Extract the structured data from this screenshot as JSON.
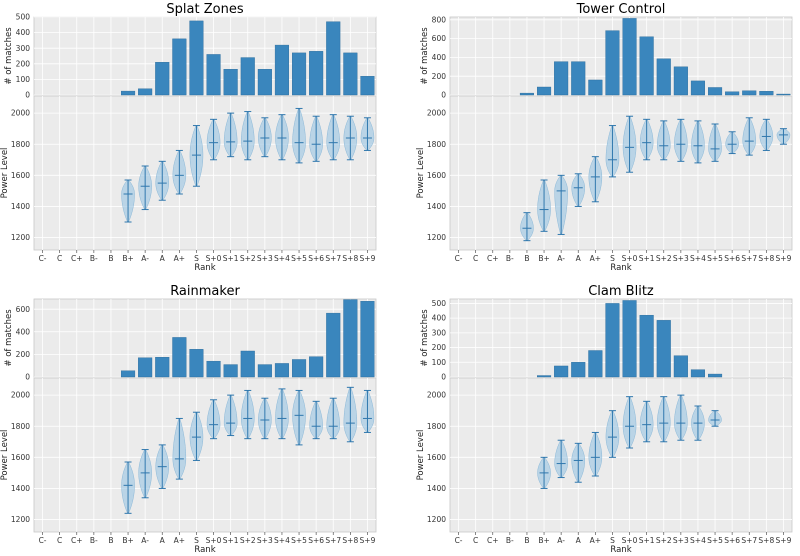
{
  "chart_data": [
    {
      "type": "bar+violin",
      "title": "Splat Zones",
      "categories": [
        "C-",
        "C",
        "C+",
        "B-",
        "B",
        "B+",
        "A-",
        "A",
        "A+",
        "S",
        "S+0",
        "S+1",
        "S+2",
        "S+3",
        "S+4",
        "S+5",
        "S+6",
        "S+7",
        "S+8",
        "S+9"
      ],
      "matches": {
        "ylabel": "# of matches",
        "ylim": [
          0,
          500
        ],
        "yticks": [
          0,
          100,
          200,
          300,
          400,
          500
        ],
        "values": [
          0,
          0,
          0,
          0,
          0,
          25,
          40,
          210,
          360,
          475,
          260,
          165,
          240,
          165,
          320,
          270,
          280,
          470,
          270,
          120
        ]
      },
      "power": {
        "ylabel": "Power Level",
        "xlabel": "Rank",
        "ylim": [
          1120,
          2110
        ],
        "yticks": [
          1200,
          1400,
          1600,
          1800,
          2000
        ],
        "violins": [
          null,
          null,
          null,
          null,
          null,
          {
            "min": 1300,
            "max": 1570,
            "median": 1480
          },
          {
            "min": 1380,
            "max": 1660,
            "median": 1530
          },
          {
            "min": 1440,
            "max": 1690,
            "median": 1550
          },
          {
            "min": 1480,
            "max": 1760,
            "median": 1600
          },
          {
            "min": 1530,
            "max": 1920,
            "median": 1730
          },
          {
            "min": 1700,
            "max": 1960,
            "median": 1810
          },
          {
            "min": 1720,
            "max": 2000,
            "median": 1815
          },
          {
            "min": 1700,
            "max": 2010,
            "median": 1820
          },
          {
            "min": 1720,
            "max": 1970,
            "median": 1840
          },
          {
            "min": 1700,
            "max": 1990,
            "median": 1840
          },
          {
            "min": 1680,
            "max": 2030,
            "median": 1810
          },
          {
            "min": 1690,
            "max": 1980,
            "median": 1800
          },
          {
            "min": 1700,
            "max": 1990,
            "median": 1810
          },
          {
            "min": 1700,
            "max": 1980,
            "median": 1840
          },
          {
            "min": 1760,
            "max": 1970,
            "median": 1840
          }
        ]
      }
    },
    {
      "type": "bar+violin",
      "title": "Tower Control",
      "categories": [
        "C-",
        "C",
        "C+",
        "B-",
        "B",
        "B+",
        "A-",
        "A",
        "A+",
        "S",
        "S+0",
        "S+1",
        "S+2",
        "S+3",
        "S+4",
        "S+5",
        "S+6",
        "S+7",
        "S+8",
        "S+9"
      ],
      "matches": {
        "ylabel": "# of matches",
        "ylim": [
          0,
          830
        ],
        "yticks": [
          0,
          200,
          400,
          600,
          800
        ],
        "values": [
          0,
          0,
          0,
          0,
          20,
          85,
          355,
          355,
          160,
          685,
          815,
          620,
          385,
          300,
          150,
          80,
          35,
          45,
          40,
          10
        ]
      },
      "power": {
        "ylabel": "Power Level",
        "xlabel": "Rank",
        "ylim": [
          1120,
          2110
        ],
        "yticks": [
          1200,
          1400,
          1600,
          1800,
          2000
        ],
        "violins": [
          null,
          null,
          null,
          null,
          {
            "min": 1180,
            "max": 1360,
            "median": 1260
          },
          {
            "min": 1240,
            "max": 1570,
            "median": 1380
          },
          {
            "min": 1220,
            "max": 1600,
            "median": 1500
          },
          {
            "min": 1400,
            "max": 1610,
            "median": 1520
          },
          {
            "min": 1430,
            "max": 1720,
            "median": 1590
          },
          {
            "min": 1590,
            "max": 1920,
            "median": 1700
          },
          {
            "min": 1620,
            "max": 1980,
            "median": 1780
          },
          {
            "min": 1700,
            "max": 1960,
            "median": 1810
          },
          {
            "min": 1700,
            "max": 1950,
            "median": 1790
          },
          {
            "min": 1690,
            "max": 1960,
            "median": 1800
          },
          {
            "min": 1680,
            "max": 1950,
            "median": 1790
          },
          {
            "min": 1690,
            "max": 1930,
            "median": 1770
          },
          {
            "min": 1740,
            "max": 1880,
            "median": 1800
          },
          {
            "min": 1730,
            "max": 1970,
            "median": 1820
          },
          {
            "min": 1760,
            "max": 1960,
            "median": 1850
          },
          {
            "min": 1800,
            "max": 1900,
            "median": 1860
          }
        ]
      }
    },
    {
      "type": "bar+violin",
      "title": "Rainmaker",
      "categories": [
        "C-",
        "C",
        "C+",
        "B-",
        "B",
        "B+",
        "A-",
        "A",
        "A+",
        "S",
        "S+0",
        "S+1",
        "S+2",
        "S+3",
        "S+4",
        "S+5",
        "S+6",
        "S+7",
        "S+8",
        "S+9"
      ],
      "matches": {
        "ylabel": "# of matches",
        "ylim": [
          0,
          690
        ],
        "yticks": [
          0,
          200,
          400,
          600
        ],
        "values": [
          0,
          0,
          0,
          0,
          0,
          55,
          170,
          175,
          350,
          245,
          140,
          110,
          230,
          110,
          120,
          155,
          180,
          565,
          685,
          670
        ]
      },
      "power": {
        "ylabel": "Power Level",
        "xlabel": "Rank",
        "ylim": [
          1120,
          2110
        ],
        "yticks": [
          1200,
          1400,
          1600,
          1800,
          2000
        ],
        "violins": [
          null,
          null,
          null,
          null,
          null,
          {
            "min": 1240,
            "max": 1570,
            "median": 1420
          },
          {
            "min": 1340,
            "max": 1650,
            "median": 1500
          },
          {
            "min": 1400,
            "max": 1680,
            "median": 1540
          },
          {
            "min": 1460,
            "max": 1850,
            "median": 1590
          },
          {
            "min": 1580,
            "max": 1890,
            "median": 1730
          },
          {
            "min": 1720,
            "max": 1970,
            "median": 1810
          },
          {
            "min": 1740,
            "max": 2000,
            "median": 1820
          },
          {
            "min": 1720,
            "max": 2030,
            "median": 1850
          },
          {
            "min": 1720,
            "max": 1980,
            "median": 1840
          },
          {
            "min": 1720,
            "max": 2040,
            "median": 1850
          },
          {
            "min": 1680,
            "max": 2030,
            "median": 1870
          },
          {
            "min": 1720,
            "max": 1960,
            "median": 1800
          },
          {
            "min": 1720,
            "max": 1980,
            "median": 1800
          },
          {
            "min": 1700,
            "max": 2050,
            "median": 1820
          },
          {
            "min": 1760,
            "max": 2030,
            "median": 1850
          }
        ]
      }
    },
    {
      "type": "bar+violin",
      "title": "Clam Blitz",
      "categories": [
        "C-",
        "C",
        "C+",
        "B-",
        "B",
        "B+",
        "A-",
        "A",
        "A+",
        "S",
        "S+0",
        "S+1",
        "S+2",
        "S+3",
        "S+4",
        "S+5",
        "S+6",
        "S+7",
        "S+8",
        "S+9"
      ],
      "matches": {
        "ylabel": "# of matches",
        "ylim": [
          0,
          530
        ],
        "yticks": [
          0,
          100,
          200,
          300,
          400,
          500
        ],
        "values": [
          0,
          0,
          0,
          0,
          0,
          10,
          75,
          100,
          180,
          500,
          520,
          420,
          385,
          145,
          50,
          20,
          0,
          0,
          0,
          0
        ]
      },
      "power": {
        "ylabel": "Power Level",
        "xlabel": "Rank",
        "ylim": [
          1120,
          2110
        ],
        "yticks": [
          1200,
          1400,
          1600,
          1800,
          2000
        ],
        "violins": [
          null,
          null,
          null,
          null,
          null,
          {
            "min": 1400,
            "max": 1600,
            "median": 1500
          },
          {
            "min": 1470,
            "max": 1710,
            "median": 1560
          },
          {
            "min": 1440,
            "max": 1690,
            "median": 1580
          },
          {
            "min": 1480,
            "max": 1760,
            "median": 1600
          },
          {
            "min": 1600,
            "max": 1900,
            "median": 1730
          },
          {
            "min": 1660,
            "max": 1990,
            "median": 1800
          },
          {
            "min": 1700,
            "max": 1960,
            "median": 1810
          },
          {
            "min": 1700,
            "max": 1990,
            "median": 1820
          },
          {
            "min": 1710,
            "max": 2000,
            "median": 1820
          },
          {
            "min": 1710,
            "max": 1930,
            "median": 1820
          },
          {
            "min": 1800,
            "max": 1900,
            "median": 1840
          },
          null,
          null,
          null,
          null
        ]
      }
    }
  ]
}
